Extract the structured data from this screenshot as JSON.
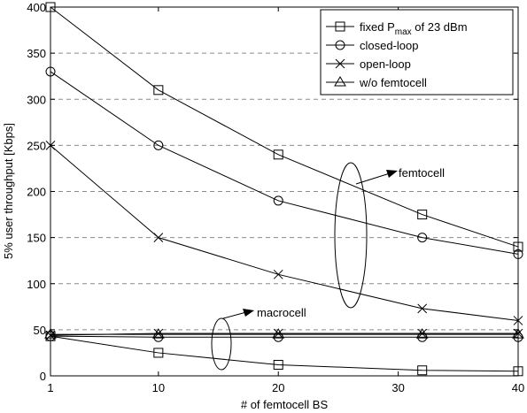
{
  "chart_data": {
    "type": "line",
    "title": "",
    "xlabel": "# of femtocell BS",
    "ylabel": "5% user throughput [Kbps]",
    "xlim": [
      1,
      40
    ],
    "ylim": [
      0,
      400
    ],
    "xticks": [
      1,
      10,
      20,
      30,
      40
    ],
    "yticks": [
      0,
      50,
      100,
      150,
      200,
      250,
      300,
      350,
      400
    ],
    "grid": "horizontal dashed",
    "legend_position": "top-right",
    "x": [
      1,
      10,
      20,
      32,
      40
    ],
    "series": [
      {
        "name": "fixed P",
        "name_sub": "max",
        "name_rest": " of 23 dBm",
        "marker": "square",
        "values": [
          400,
          310,
          240,
          175,
          140
        ]
      },
      {
        "name": "closed-loop",
        "marker": "circle",
        "values": [
          330,
          250,
          190,
          150,
          132
        ]
      },
      {
        "name": "open-loop",
        "marker": "x",
        "values": [
          250,
          150,
          110,
          73,
          60
        ]
      },
      {
        "name": "w/o femtocell",
        "marker": "triangle",
        "values": [
          45,
          45,
          45,
          45,
          45
        ]
      }
    ],
    "macro_series": [
      {
        "marker": "square",
        "values": [
          43,
          25,
          12,
          6,
          5
        ]
      },
      {
        "marker": "circle",
        "values": [
          43,
          42,
          42,
          42,
          42
        ]
      },
      {
        "marker": "x",
        "values": [
          44,
          46,
          46,
          46,
          46
        ]
      }
    ],
    "annotations": {
      "femtocell": "femtocell",
      "macrocell": "macrocell"
    }
  }
}
